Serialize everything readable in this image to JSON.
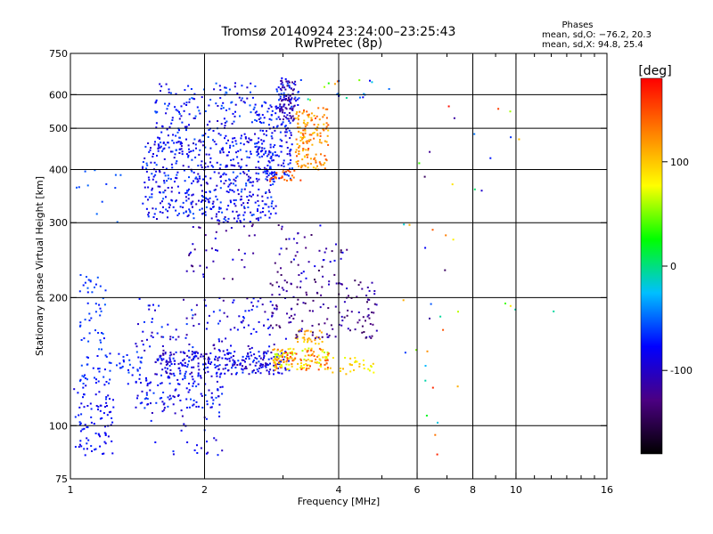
{
  "chart_data": {
    "type": "scatter",
    "title_line1": "Tromsø 20140924 23:24:00–23:25:43",
    "title_line2": "RwPretec (8p)",
    "phase_title": "Phases",
    "phase_line1": "mean, sd,O:  −76.2, 20.3",
    "phase_line2": "mean, sd,X:  94.8, 25.4",
    "xlabel": "Frequency [MHz]",
    "ylabel": "Stationary phase Virtual Height [km]",
    "x_scale": "log",
    "y_scale": "log",
    "xlim": [
      1,
      16
    ],
    "ylim": [
      75,
      750
    ],
    "x_ticks": [
      1,
      2,
      4,
      6,
      8,
      10,
      16
    ],
    "x_minor_ticks": [
      3,
      5,
      7,
      9,
      11,
      12,
      13,
      14,
      15
    ],
    "y_ticks": [
      75,
      100,
      200,
      300,
      400,
      500,
      600,
      750
    ],
    "x_gridlines": [
      2,
      4,
      6,
      8,
      10
    ],
    "y_gridlines": [
      100,
      200,
      300,
      400,
      500,
      600
    ],
    "colorbar": {
      "label": "[deg]",
      "range": [
        -180,
        180
      ],
      "ticks": [
        -100,
        0,
        100
      ],
      "colors": [
        "#000000",
        "#4b0082",
        "#0000ff",
        "#00bfff",
        "#00ff00",
        "#ffff00",
        "#ff7f00",
        "#ff0000"
      ]
    },
    "clusters": [
      {
        "fx": [
          1.0,
          1.25
        ],
        "fy": [
          85,
          125
        ],
        "phase": [
          -95,
          -65
        ],
        "n": 90
      },
      {
        "fx": [
          1.05,
          1.45
        ],
        "fy": [
          125,
          150
        ],
        "phase": [
          -80,
          -55
        ],
        "n": 60
      },
      {
        "fx": [
          1.05,
          1.2
        ],
        "fy": [
          150,
          230
        ],
        "phase": [
          -75,
          -50
        ],
        "n": 45
      },
      {
        "fx": [
          1.0,
          1.3
        ],
        "fy": [
          300,
          400
        ],
        "phase": [
          -70,
          -50
        ],
        "n": 12
      },
      {
        "fx": [
          1.55,
          3.1
        ],
        "fy": [
          132,
          150
        ],
        "phase": [
          -115,
          -60
        ],
        "n": 280
      },
      {
        "fx": [
          1.4,
          2.2
        ],
        "fy": [
          110,
          132
        ],
        "phase": [
          -100,
          -55
        ],
        "n": 120
      },
      {
        "fx": [
          1.4,
          3.1
        ],
        "fy": [
          150,
          200
        ],
        "phase": [
          -120,
          -60
        ],
        "n": 120
      },
      {
        "fx": [
          1.5,
          2.2
        ],
        "fy": [
          85,
          110
        ],
        "phase": [
          -110,
          -60
        ],
        "n": 30
      },
      {
        "fx": [
          1.45,
          2.9
        ],
        "fy": [
          300,
          470
        ],
        "phase": [
          -105,
          -55
        ],
        "n": 520
      },
      {
        "fx": [
          1.55,
          2.6
        ],
        "fy": [
          470,
          640
        ],
        "phase": [
          -100,
          -50
        ],
        "n": 160
      },
      {
        "fx": [
          2.6,
          3.15
        ],
        "fy": [
          380,
          580
        ],
        "phase": [
          -100,
          -55
        ],
        "n": 150
      },
      {
        "fx": [
          2.95,
          3.2
        ],
        "fy": [
          520,
          650
        ],
        "phase": [
          -140,
          -95
        ],
        "n": 80
      },
      {
        "fx": [
          2.9,
          3.3
        ],
        "fy": [
          560,
          660
        ],
        "phase": [
          -80,
          -55
        ],
        "n": 30
      },
      {
        "fx": [
          2.85,
          3.8
        ],
        "fy": [
          135,
          152
        ],
        "phase": [
          60,
          160
        ],
        "n": 160
      },
      {
        "fx": [
          3.8,
          4.8
        ],
        "fy": [
          132,
          145
        ],
        "phase": [
          70,
          110
        ],
        "n": 30
      },
      {
        "fx": [
          3.2,
          3.7
        ],
        "fy": [
          155,
          168
        ],
        "phase": [
          85,
          125
        ],
        "n": 30
      },
      {
        "fx": [
          2.8,
          4.9
        ],
        "fy": [
          160,
          220
        ],
        "phase": [
          -145,
          -100
        ],
        "n": 140
      },
      {
        "fx": [
          2.8,
          4.2
        ],
        "fy": [
          220,
          300
        ],
        "phase": [
          -150,
          -80
        ],
        "n": 50
      },
      {
        "fx": [
          3.2,
          3.8
        ],
        "fy": [
          400,
          560
        ],
        "phase": [
          95,
          150
        ],
        "n": 150
      },
      {
        "fx": [
          2.8,
          3.3
        ],
        "fy": [
          375,
          400
        ],
        "phase": [
          130,
          160
        ],
        "n": 25
      },
      {
        "fx": [
          3.4,
          5.2
        ],
        "fy": [
          580,
          660
        ],
        "phase": [
          -120,
          150
        ],
        "n": 20
      },
      {
        "fx": [
          5.5,
          7.5
        ],
        "fy": [
          80,
          600
        ],
        "phase": [
          -160,
          180
        ],
        "n": 30
      },
      {
        "fx": [
          8.0,
          12.5
        ],
        "fy": [
          180,
          620
        ],
        "phase": [
          -150,
          160
        ],
        "n": 12
      },
      {
        "fx": [
          1.8,
          2.6
        ],
        "fy": [
          220,
          300
        ],
        "phase": [
          -140,
          -80
        ],
        "n": 40
      }
    ]
  }
}
